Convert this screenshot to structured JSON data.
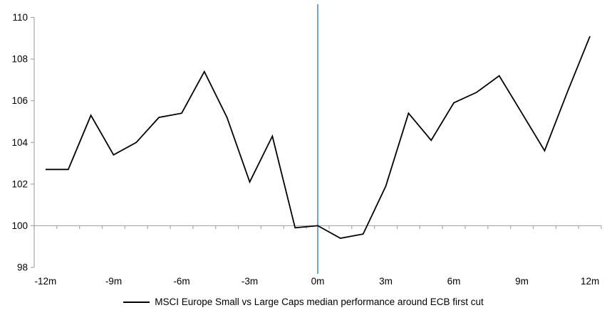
{
  "chart_data": {
    "type": "line",
    "title": "",
    "xlabel": "",
    "ylabel": "",
    "x_unit": "months relative to ECB first cut",
    "x": [
      -12,
      -11,
      -10,
      -9,
      -8,
      -7,
      -6,
      -5,
      -4,
      -3,
      -2,
      -1,
      0,
      1,
      2,
      3,
      4,
      5,
      6,
      7,
      8,
      9,
      10,
      11,
      12
    ],
    "series": [
      {
        "name": "MSCI Europe Small vs Large Caps median performance around ECB first cut",
        "color": "#000000",
        "values": [
          102.7,
          102.7,
          105.3,
          103.4,
          104.0,
          105.2,
          105.4,
          107.4,
          105.2,
          102.1,
          104.3,
          99.9,
          100.0,
          99.4,
          99.6,
          101.9,
          105.4,
          104.1,
          105.9,
          106.4,
          107.2,
          105.4,
          103.6,
          106.4,
          109.1
        ]
      }
    ],
    "x_ticks": [
      {
        "pos": -12,
        "label": "-12m"
      },
      {
        "pos": -9,
        "label": "-9m"
      },
      {
        "pos": -6,
        "label": "-6m"
      },
      {
        "pos": -3,
        "label": "-3m"
      },
      {
        "pos": 0,
        "label": "0m"
      },
      {
        "pos": 3,
        "label": "3m"
      },
      {
        "pos": 6,
        "label": "6m"
      },
      {
        "pos": 9,
        "label": "9m"
      },
      {
        "pos": 12,
        "label": "12m"
      }
    ],
    "y_ticks": [
      98,
      100,
      102,
      104,
      106,
      108,
      110
    ],
    "ylim": [
      98,
      110
    ],
    "xlim": [
      -12.5,
      12.5
    ],
    "baseline_value": 100,
    "event_line_x": 0,
    "grid": "off",
    "legend_position": "bottom",
    "colors": {
      "series_line": "#000000",
      "axis_line": "#a6a6a6",
      "baseline_line": "#a6a6a6",
      "event_line": "#75a3d1",
      "tick_label": "#000000"
    }
  }
}
